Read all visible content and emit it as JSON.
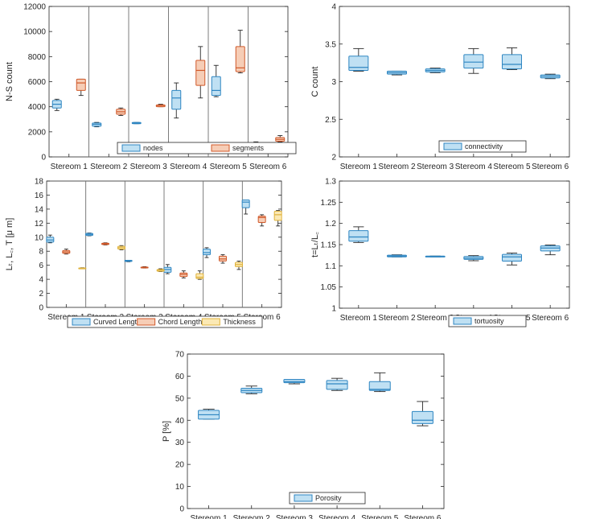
{
  "colors": {
    "blue_fill": "#bfe0f3",
    "blue_edge": "#2f86c2",
    "orange_fill": "#f6cdb6",
    "orange_edge": "#d0592a",
    "yellow_fill": "#fbe9b4",
    "yellow_edge": "#dfb23c",
    "whisker": "#262626",
    "axis": "#262626",
    "divider": "#6e6e6e",
    "grid": "#e6e6e6"
  },
  "chart_data": [
    {
      "id": "ns-count",
      "type": "box",
      "ylabel": "N-S count",
      "ylim": [
        0,
        12000
      ],
      "yticks": [
        0,
        2000,
        4000,
        6000,
        8000,
        10000,
        12000
      ],
      "categories": [
        "Stereom 1",
        "Stereom 2",
        "Stereom 3",
        "Stereom 4",
        "Stereom 5",
        "Stereom 6"
      ],
      "dividers": true,
      "legend": "bottom-center",
      "series": [
        {
          "name": "nodes",
          "style": "blue",
          "boxes": [
            {
              "min": 3700,
              "q1": 3900,
              "median": 4200,
              "q3": 4500,
              "max": 4600
            },
            {
              "min": 2400,
              "q1": 2450,
              "median": 2600,
              "q3": 2700,
              "max": 2750
            },
            {
              "min": 2650,
              "q1": 2650,
              "median": 2700,
              "q3": 2750,
              "max": 2750
            },
            {
              "min": 3100,
              "q1": 3800,
              "median": 4700,
              "q3": 5300,
              "max": 5900
            },
            {
              "min": 4800,
              "q1": 4900,
              "median": 5300,
              "q3": 6400,
              "max": 7300
            },
            {
              "min": 900,
              "q1": 900,
              "median": 1000,
              "q3": 1100,
              "max": 1200
            }
          ]
        },
        {
          "name": "segments",
          "style": "orange",
          "boxes": [
            {
              "min": 4900,
              "q1": 5300,
              "median": 5900,
              "q3": 6200,
              "max": 6200
            },
            {
              "min": 3300,
              "q1": 3400,
              "median": 3600,
              "q3": 3800,
              "max": 3900
            },
            {
              "min": 4000,
              "q1": 4000,
              "median": 4100,
              "q3": 4150,
              "max": 4200
            },
            {
              "min": 4700,
              "q1": 5700,
              "median": 6900,
              "q3": 7700,
              "max": 8800
            },
            {
              "min": 6700,
              "q1": 6800,
              "median": 7100,
              "q3": 8800,
              "max": 10100
            },
            {
              "min": 1200,
              "q1": 1250,
              "median": 1400,
              "q3": 1550,
              "max": 1700
            }
          ]
        }
      ]
    },
    {
      "id": "connectivity",
      "type": "box",
      "ylabel": "C count",
      "ylim": [
        2,
        4
      ],
      "yticks": [
        2,
        2.5,
        3,
        3.5,
        4
      ],
      "categories": [
        "Stereom 1",
        "Stereom 2",
        "Stereom 3",
        "Stereom 4",
        "Stereom 5",
        "Stereom 6"
      ],
      "dividers": false,
      "legend": "bottom-center",
      "series": [
        {
          "name": "connectivity",
          "style": "blue",
          "boxes": [
            {
              "min": 3.14,
              "q1": 3.15,
              "median": 3.19,
              "q3": 3.34,
              "max": 3.44
            },
            {
              "min": 3.09,
              "q1": 3.1,
              "median": 3.12,
              "q3": 3.14,
              "max": 3.14
            },
            {
              "min": 3.12,
              "q1": 3.13,
              "median": 3.15,
              "q3": 3.17,
              "max": 3.18
            },
            {
              "min": 3.11,
              "q1": 3.18,
              "median": 3.26,
              "q3": 3.36,
              "max": 3.44
            },
            {
              "min": 3.16,
              "q1": 3.17,
              "median": 3.23,
              "q3": 3.36,
              "max": 3.45
            },
            {
              "min": 3.04,
              "q1": 3.05,
              "median": 3.07,
              "q3": 3.09,
              "max": 3.1
            }
          ]
        }
      ]
    },
    {
      "id": "lengths",
      "type": "box",
      "ylabel": "Lₜ, L꜀, T [μ m]",
      "ylim": [
        0,
        18
      ],
      "yticks": [
        0,
        2,
        4,
        6,
        8,
        10,
        12,
        14,
        16,
        18
      ],
      "categories": [
        "Stereom 1",
        "Stereom 2",
        "Stereom 3",
        "Stereom 4",
        "Stereom 5",
        "Stereom 6"
      ],
      "dividers": true,
      "legend": "bottom-center",
      "series": [
        {
          "name": "Curved Length",
          "style": "blue",
          "boxes": [
            {
              "min": 9.2,
              "q1": 9.3,
              "median": 9.6,
              "q3": 10.0,
              "max": 10.3
            },
            {
              "min": 10.2,
              "q1": 10.25,
              "median": 10.4,
              "q3": 10.55,
              "max": 10.6
            },
            {
              "min": 6.5,
              "q1": 6.55,
              "median": 6.6,
              "q3": 6.7,
              "max": 6.7
            },
            {
              "min": 4.8,
              "q1": 5.0,
              "median": 5.4,
              "q3": 5.7,
              "max": 6.1
            },
            {
              "min": 7.1,
              "q1": 7.5,
              "median": 7.8,
              "q3": 8.3,
              "max": 8.5
            },
            {
              "min": 13.3,
              "q1": 14.2,
              "median": 15.0,
              "q3": 15.3,
              "max": 15.3
            }
          ]
        },
        {
          "name": "Chord Length",
          "style": "orange",
          "boxes": [
            {
              "min": 7.6,
              "q1": 7.7,
              "median": 7.9,
              "q3": 8.1,
              "max": 8.3
            },
            {
              "min": 8.9,
              "q1": 8.95,
              "median": 9.05,
              "q3": 9.15,
              "max": 9.2
            },
            {
              "min": 5.6,
              "q1": 5.65,
              "median": 5.7,
              "q3": 5.75,
              "max": 5.8
            },
            {
              "min": 4.2,
              "q1": 4.4,
              "median": 4.7,
              "q3": 4.9,
              "max": 5.2
            },
            {
              "min": 6.3,
              "q1": 6.6,
              "median": 6.9,
              "q3": 7.3,
              "max": 7.5
            },
            {
              "min": 11.6,
              "q1": 12.1,
              "median": 12.8,
              "q3": 13.0,
              "max": 13.2
            }
          ]
        },
        {
          "name": "Thickness",
          "style": "yellow",
          "boxes": [
            {
              "min": 5.55,
              "q1": 5.58,
              "median": 5.6,
              "q3": 5.62,
              "max": 5.65
            },
            {
              "min": 8.2,
              "q1": 8.3,
              "median": 8.5,
              "q3": 8.7,
              "max": 8.8
            },
            {
              "min": 5.1,
              "q1": 5.15,
              "median": 5.3,
              "q3": 5.4,
              "max": 5.5
            },
            {
              "min": 4.0,
              "q1": 4.1,
              "median": 4.3,
              "q3": 4.8,
              "max": 5.2
            },
            {
              "min": 5.4,
              "q1": 5.8,
              "median": 6.1,
              "q3": 6.4,
              "max": 6.6
            },
            {
              "min": 11.6,
              "q1": 12.4,
              "median": 13.2,
              "q3": 13.7,
              "max": 13.8
            }
          ]
        }
      ]
    },
    {
      "id": "tortuosity",
      "type": "box",
      "ylabel": "t=Lₜ/L꜀",
      "ylim": [
        1,
        1.3
      ],
      "yticks": [
        1,
        1.05,
        1.1,
        1.15,
        1.2,
        1.25,
        1.3
      ],
      "categories": [
        "Stereom 1",
        "Stereom 2",
        "Stereom 3",
        "Stereom 4",
        "Stereom 5",
        "Stereom 6"
      ],
      "dividers": false,
      "legend": "bottom-center",
      "series": [
        {
          "name": "tortuosity",
          "style": "blue",
          "boxes": [
            {
              "min": 1.155,
              "q1": 1.158,
              "median": 1.168,
              "q3": 1.183,
              "max": 1.192
            },
            {
              "min": 1.121,
              "q1": 1.121,
              "median": 1.123,
              "q3": 1.125,
              "max": 1.126
            },
            {
              "min": 1.121,
              "q1": 1.121,
              "median": 1.122,
              "q3": 1.123,
              "max": 1.123
            },
            {
              "min": 1.112,
              "q1": 1.115,
              "median": 1.118,
              "q3": 1.122,
              "max": 1.124
            },
            {
              "min": 1.102,
              "q1": 1.111,
              "median": 1.121,
              "q3": 1.127,
              "max": 1.13
            },
            {
              "min": 1.126,
              "q1": 1.135,
              "median": 1.142,
              "q3": 1.147,
              "max": 1.149
            }
          ]
        }
      ]
    },
    {
      "id": "porosity",
      "type": "box",
      "ylabel": "P [%]",
      "ylim": [
        0,
        70
      ],
      "yticks": [
        0,
        10,
        20,
        30,
        40,
        50,
        60,
        70
      ],
      "categories": [
        "Stereom 1",
        "Stereom 2",
        "Stereom 3",
        "Stereom 4",
        "Stereom 5",
        "Stereom 6"
      ],
      "dividers": false,
      "legend": "bottom-center",
      "series": [
        {
          "name": "Porosity",
          "style": "blue",
          "boxes": [
            {
              "min": 40.5,
              "q1": 40.5,
              "median": 42.5,
              "q3": 44.5,
              "max": 45
            },
            {
              "min": 52,
              "q1": 52.5,
              "median": 53.5,
              "q3": 54.5,
              "max": 55.5
            },
            {
              "min": 56.5,
              "q1": 57,
              "median": 57.5,
              "q3": 58.5,
              "max": 58.5
            },
            {
              "min": 53.5,
              "q1": 54,
              "median": 56.5,
              "q3": 58,
              "max": 59
            },
            {
              "min": 53,
              "q1": 53.5,
              "median": 54,
              "q3": 57.5,
              "max": 61.5
            },
            {
              "min": 37.5,
              "q1": 38.5,
              "median": 40,
              "q3": 44,
              "max": 48.5
            }
          ]
        }
      ]
    }
  ]
}
